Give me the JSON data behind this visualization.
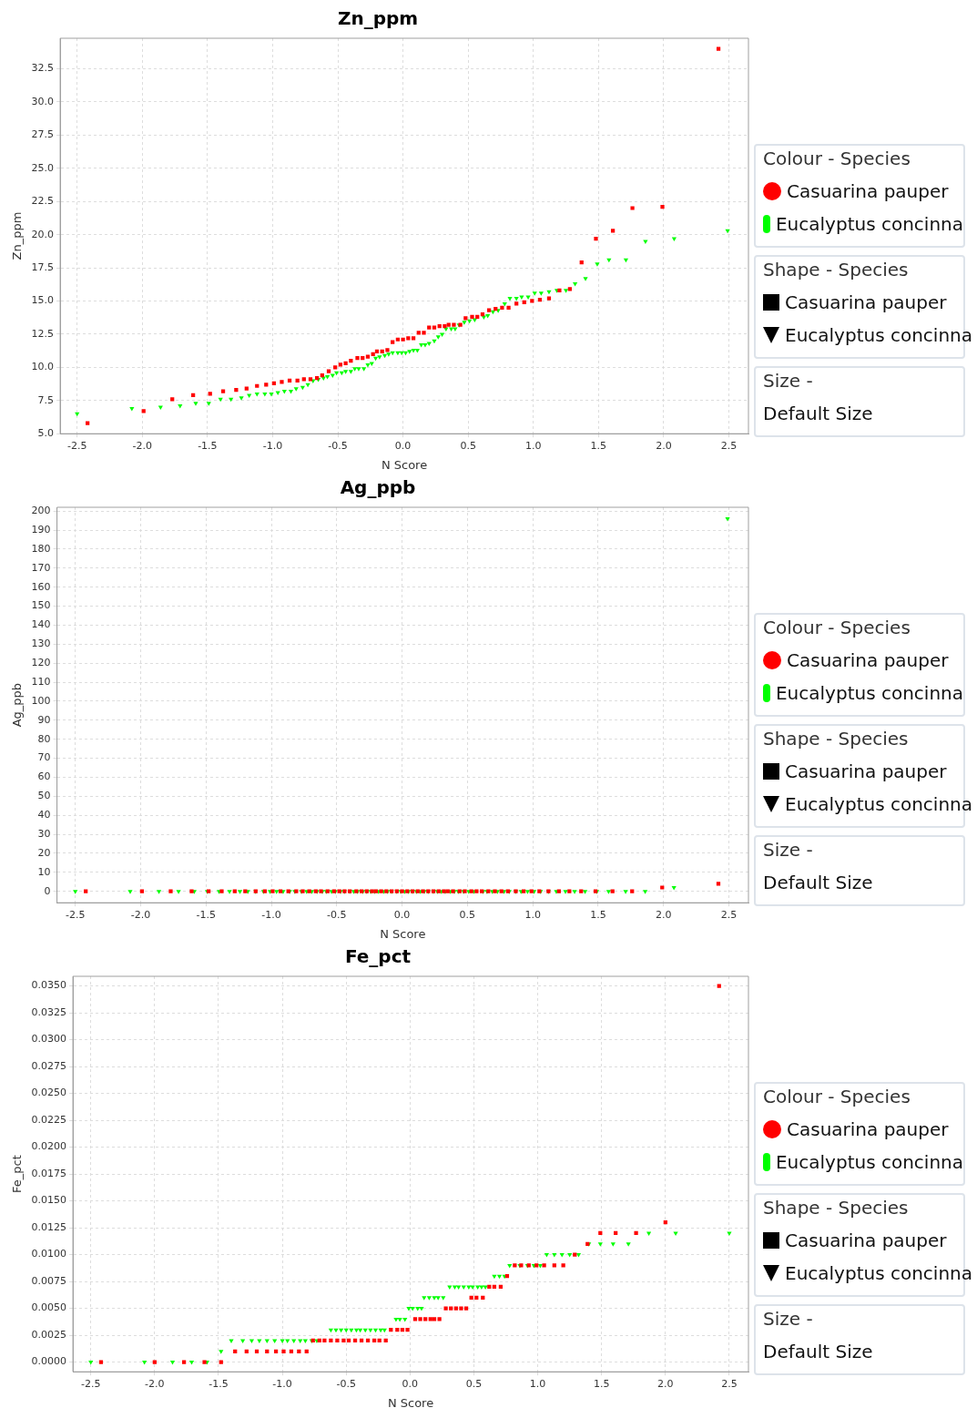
{
  "chart_data": [
    {
      "type": "scatter",
      "title": "Zn_ppm",
      "xlabel": "N Score",
      "ylabel": "Zn_ppm",
      "legend_title": "Colour - Species",
      "annotations": [
        "Shape - Species",
        "Size -",
        "Default Size"
      ],
      "legend": "right",
      "grid": true,
      "xlim": [
        -2.63,
        2.65
      ],
      "xticks": [
        {
          "value": -2.5,
          "label": "-2.5"
        },
        {
          "value": -2,
          "label": "-2.0"
        },
        {
          "value": -1.5,
          "label": "-1.5"
        },
        {
          "value": -1,
          "label": "-1.0"
        },
        {
          "value": -0.5,
          "label": "-0.5"
        },
        {
          "value": 0,
          "label": "0.0"
        },
        {
          "value": 0.5,
          "label": "0.5"
        },
        {
          "value": 1,
          "label": "1.0"
        },
        {
          "value": 1.5,
          "label": "1.5"
        },
        {
          "value": 2,
          "label": "2.0"
        },
        {
          "value": 2.5,
          "label": "2.5"
        }
      ],
      "ylim": [
        5,
        34.8
      ],
      "yticks": [
        {
          "value": 5,
          "label": "5.0"
        },
        {
          "value": 7.5,
          "label": "7.5"
        },
        {
          "value": 10,
          "label": "10.0"
        },
        {
          "value": 12.5,
          "label": "12.5"
        },
        {
          "value": 15,
          "label": "15.0"
        },
        {
          "value": 17.5,
          "label": "17.5"
        },
        {
          "value": 20,
          "label": "20.0"
        },
        {
          "value": 22.5,
          "label": "22.5"
        },
        {
          "value": 25,
          "label": "25.0"
        },
        {
          "value": 27.5,
          "label": "27.5"
        },
        {
          "value": 30,
          "label": "30.0"
        },
        {
          "value": 32.5,
          "label": "32.5"
        }
      ],
      "series": [
        {
          "name": "Casuarina pauper",
          "color": "#ff0000",
          "marker": "square",
          "x": [
            -2.42,
            -1.99,
            -1.77,
            -1.61,
            -1.48,
            -1.38,
            -1.28,
            -1.2,
            -1.12,
            -1.05,
            -0.99,
            -0.93,
            -0.87,
            -0.81,
            -0.76,
            -0.71,
            -0.66,
            -0.62,
            -0.57,
            -0.52,
            -0.48,
            -0.44,
            -0.4,
            -0.35,
            -0.31,
            -0.27,
            -0.23,
            -0.2,
            -0.16,
            -0.12,
            -0.08,
            -0.04,
            0,
            0.04,
            0.08,
            0.12,
            0.16,
            0.2,
            0.24,
            0.28,
            0.32,
            0.35,
            0.39,
            0.44,
            0.48,
            0.53,
            0.57,
            0.61,
            0.66,
            0.71,
            0.76,
            0.81,
            0.87,
            0.93,
            0.99,
            1.05,
            1.12,
            1.2,
            1.28,
            1.37,
            1.48,
            1.61,
            1.76,
            1.99,
            2.42
          ],
          "values": [
            5.8,
            6.7,
            7.6,
            7.9,
            8.0,
            8.2,
            8.3,
            8.4,
            8.6,
            8.7,
            8.8,
            8.9,
            9.0,
            9.0,
            9.1,
            9.1,
            9.2,
            9.4,
            9.7,
            10.0,
            10.2,
            10.3,
            10.5,
            10.7,
            10.7,
            10.8,
            11.0,
            11.2,
            11.2,
            11.3,
            11.9,
            12.1,
            12.1,
            12.2,
            12.2,
            12.6,
            12.6,
            13.0,
            13.0,
            13.1,
            13.1,
            13.2,
            13.2,
            13.2,
            13.7,
            13.8,
            13.8,
            14.0,
            14.3,
            14.4,
            14.5,
            14.5,
            14.8,
            14.9,
            15.0,
            15.1,
            15.2,
            15.8,
            15.9,
            17.9,
            19.7,
            20.3,
            22.0,
            22.1,
            34.0
          ]
        },
        {
          "name": "Eucalyptus concinna",
          "color": "#00ff00",
          "marker": "triangle",
          "x": [
            -2.5,
            -2.08,
            -1.86,
            -1.71,
            -1.59,
            -1.49,
            -1.4,
            -1.32,
            -1.24,
            -1.18,
            -1.12,
            -1.06,
            -1.01,
            -0.96,
            -0.91,
            -0.86,
            -0.82,
            -0.77,
            -0.73,
            -0.69,
            -0.65,
            -0.61,
            -0.58,
            -0.54,
            -0.51,
            -0.47,
            -0.44,
            -0.4,
            -0.37,
            -0.34,
            -0.3,
            -0.27,
            -0.24,
            -0.21,
            -0.18,
            -0.14,
            -0.11,
            -0.08,
            -0.04,
            -0.01,
            0.02,
            0.05,
            0.08,
            0.11,
            0.14,
            0.17,
            0.2,
            0.24,
            0.27,
            0.3,
            0.33,
            0.37,
            0.4,
            0.43,
            0.47,
            0.51,
            0.55,
            0.62,
            0.65,
            0.69,
            0.73,
            0.78,
            0.82,
            0.87,
            0.91,
            0.96,
            1.01,
            1.06,
            1.12,
            1.18,
            1.25,
            1.32,
            1.4,
            1.49,
            1.58,
            1.71,
            1.86,
            2.08,
            2.49
          ],
          "values": [
            6.5,
            6.9,
            7.0,
            7.1,
            7.3,
            7.3,
            7.6,
            7.6,
            7.7,
            7.9,
            8.0,
            8.0,
            8.0,
            8.1,
            8.2,
            8.2,
            8.4,
            8.5,
            8.7,
            9.0,
            9.1,
            9.2,
            9.3,
            9.4,
            9.6,
            9.6,
            9.7,
            9.7,
            9.9,
            9.9,
            9.9,
            10.2,
            10.3,
            10.7,
            10.8,
            10.9,
            11.0,
            11.1,
            11.1,
            11.1,
            11.1,
            11.2,
            11.3,
            11.3,
            11.7,
            11.7,
            11.8,
            12.0,
            12.3,
            12.5,
            12.9,
            12.9,
            12.9,
            13.2,
            13.4,
            13.5,
            13.6,
            13.8,
            13.9,
            14.2,
            14.3,
            14.8,
            15.2,
            15.2,
            15.3,
            15.3,
            15.6,
            15.6,
            15.7,
            15.8,
            15.8,
            16.3,
            16.7,
            17.8,
            18.1,
            18.1,
            19.5,
            19.7,
            20.3
          ]
        }
      ]
    },
    {
      "type": "scatter",
      "title": "Ag_ppb",
      "xlabel": "N Score",
      "ylabel": "Ag_ppb",
      "legend_title": "Colour - Species",
      "annotations": [
        "Shape - Species",
        "Size -",
        "Default Size"
      ],
      "legend": "right",
      "grid": true,
      "xlim": [
        -2.64,
        2.65
      ],
      "xticks": [
        {
          "value": -2.5,
          "label": "-2.5"
        },
        {
          "value": -2,
          "label": "-2.0"
        },
        {
          "value": -1.5,
          "label": "-1.5"
        },
        {
          "value": -1,
          "label": "-1.0"
        },
        {
          "value": -0.5,
          "label": "-0.5"
        },
        {
          "value": 0,
          "label": "0.0"
        },
        {
          "value": 0.5,
          "label": "0.5"
        },
        {
          "value": 1,
          "label": "1.0"
        },
        {
          "value": 1.5,
          "label": "1.5"
        },
        {
          "value": 2,
          "label": "2.0"
        },
        {
          "value": 2.5,
          "label": "2.5"
        }
      ],
      "ylim": [
        -6,
        202
      ],
      "yticks": [
        0,
        10,
        20,
        30,
        40,
        50,
        60,
        70,
        80,
        90,
        100,
        110,
        120,
        130,
        140,
        150,
        160,
        170,
        180,
        190,
        200
      ],
      "series": [
        {
          "name": "Casuarina pauper",
          "color": "#ff0000",
          "marker": "square",
          "x": [
            -2.42,
            -1.99,
            -1.77,
            -1.61,
            -1.48,
            -1.38,
            -1.28,
            -1.2,
            -1.12,
            -1.05,
            -0.99,
            -0.93,
            -0.87,
            -0.81,
            -0.76,
            -0.71,
            -0.66,
            -0.62,
            -0.57,
            -0.52,
            -0.48,
            -0.44,
            -0.4,
            -0.35,
            -0.31,
            -0.27,
            -0.23,
            -0.2,
            -0.16,
            -0.12,
            -0.08,
            -0.04,
            0,
            0.04,
            0.08,
            0.12,
            0.16,
            0.2,
            0.24,
            0.28,
            0.32,
            0.35,
            0.39,
            0.44,
            0.48,
            0.53,
            0.57,
            0.61,
            0.66,
            0.71,
            0.76,
            0.81,
            0.87,
            0.93,
            0.99,
            1.05,
            1.12,
            1.2,
            1.28,
            1.37,
            1.48,
            1.61,
            1.76,
            1.99,
            2.42
          ],
          "values": [
            0,
            0,
            0,
            0,
            0,
            0,
            0,
            0,
            0,
            0,
            0,
            0,
            0,
            0,
            0,
            0,
            0,
            0,
            0,
            0,
            0,
            0,
            0,
            0,
            0,
            0,
            0,
            0,
            0,
            0,
            0,
            0,
            0,
            0,
            0,
            0,
            0,
            0,
            0,
            0,
            0,
            0,
            0,
            0,
            0,
            0,
            0,
            0,
            0,
            0,
            0,
            0,
            0,
            0,
            0,
            0,
            0,
            0,
            0,
            0,
            0,
            0,
            0,
            2,
            4
          ]
        },
        {
          "name": "Eucalyptus concinna",
          "color": "#00ff00",
          "marker": "triangle",
          "x": [
            -2.5,
            -2.08,
            -1.86,
            -1.71,
            -1.59,
            -1.49,
            -1.4,
            -1.32,
            -1.24,
            -1.18,
            -1.12,
            -1.06,
            -1.01,
            -0.96,
            -0.91,
            -0.86,
            -0.82,
            -0.77,
            -0.73,
            -0.69,
            -0.65,
            -0.61,
            -0.58,
            -0.54,
            -0.51,
            -0.47,
            -0.44,
            -0.4,
            -0.37,
            -0.34,
            -0.3,
            -0.27,
            -0.24,
            -0.21,
            -0.18,
            -0.14,
            -0.11,
            -0.08,
            -0.04,
            -0.01,
            0.02,
            0.05,
            0.08,
            0.11,
            0.14,
            0.17,
            0.2,
            0.24,
            0.27,
            0.3,
            0.33,
            0.37,
            0.4,
            0.43,
            0.47,
            0.51,
            0.55,
            0.62,
            0.65,
            0.69,
            0.73,
            0.78,
            0.82,
            0.87,
            0.91,
            0.96,
            1.01,
            1.06,
            1.12,
            1.18,
            1.25,
            1.32,
            1.4,
            1.49,
            1.58,
            1.71,
            1.86,
            2.08,
            2.49
          ],
          "values": [
            0,
            0,
            0,
            0,
            0,
            0,
            0,
            0,
            0,
            0,
            0,
            0,
            0,
            0,
            0,
            0,
            0,
            0,
            0,
            0,
            0,
            0,
            0,
            0,
            0,
            0,
            0,
            0,
            0,
            0,
            0,
            0,
            0,
            0,
            0,
            0,
            0,
            0,
            0,
            0,
            0,
            0,
            0,
            0,
            0,
            0,
            0,
            0,
            0,
            0,
            0,
            0,
            0,
            0,
            0,
            0,
            0,
            0,
            0,
            0,
            0,
            0,
            0,
            0,
            0,
            0,
            0,
            0,
            0,
            0,
            0,
            0,
            0,
            0,
            0,
            0,
            0,
            2,
            196
          ]
        }
      ]
    },
    {
      "type": "scatter",
      "title": "Fe_pct",
      "xlabel": "N Score",
      "ylabel": "Fe_pct",
      "legend_title": "Colour - Species",
      "annotations": [
        "Shape - Species",
        "Size -",
        "Default Size"
      ],
      "legend": "right",
      "grid": true,
      "xlim": [
        -2.64,
        2.65
      ],
      "xticks": [
        {
          "value": -2.5,
          "label": "-2.5"
        },
        {
          "value": -2,
          "label": "-2.0"
        },
        {
          "value": -1.5,
          "label": "-1.5"
        },
        {
          "value": -1,
          "label": "-1.0"
        },
        {
          "value": -0.5,
          "label": "-0.5"
        },
        {
          "value": 0,
          "label": "0.0"
        },
        {
          "value": 0.5,
          "label": "0.5"
        },
        {
          "value": 1,
          "label": "1.0"
        },
        {
          "value": 1.5,
          "label": "1.5"
        },
        {
          "value": 2,
          "label": "2.0"
        },
        {
          "value": 2.5,
          "label": "2.5"
        }
      ],
      "ylim": [
        -0.0009,
        0.0359
      ],
      "yticks": [
        {
          "value": 0,
          "label": "0.0000"
        },
        {
          "value": 0.0025,
          "label": "0.0025"
        },
        {
          "value": 0.005,
          "label": "0.0050"
        },
        {
          "value": 0.0075,
          "label": "0.0075"
        },
        {
          "value": 0.01,
          "label": "0.0100"
        },
        {
          "value": 0.0125,
          "label": "0.0125"
        },
        {
          "value": 0.015,
          "label": "0.0150"
        },
        {
          "value": 0.0175,
          "label": "0.0175"
        },
        {
          "value": 0.02,
          "label": "0.0200"
        },
        {
          "value": 0.0225,
          "label": "0.0225"
        },
        {
          "value": 0.025,
          "label": "0.0250"
        },
        {
          "value": 0.0275,
          "label": "0.0275"
        },
        {
          "value": 0.03,
          "label": "0.0300"
        },
        {
          "value": 0.0325,
          "label": "0.0325"
        },
        {
          "value": 0.035,
          "label": "0.0350"
        }
      ],
      "series": [
        {
          "name": "Casuarina pauper",
          "color": "#ff0000",
          "marker": "square",
          "x": [
            -2.42,
            -2.0,
            -1.77,
            -1.61,
            -1.48,
            -1.37,
            -1.28,
            -1.2,
            -1.12,
            -1.05,
            -0.99,
            -0.93,
            -0.87,
            -0.81,
            -0.76,
            -0.71,
            -0.67,
            -0.62,
            -0.57,
            -0.52,
            -0.48,
            -0.43,
            -0.38,
            -0.33,
            -0.28,
            -0.24,
            -0.19,
            -0.15,
            -0.1,
            -0.06,
            -0.02,
            0.04,
            0.08,
            0.12,
            0.16,
            0.19,
            0.23,
            0.28,
            0.32,
            0.36,
            0.4,
            0.44,
            0.48,
            0.52,
            0.57,
            0.62,
            0.66,
            0.71,
            0.76,
            0.82,
            0.87,
            0.93,
            0.99,
            1.05,
            1.13,
            1.2,
            1.29,
            1.39,
            1.49,
            1.61,
            1.77,
            2.0,
            2.42
          ],
          "values": [
            0,
            0,
            0,
            0,
            0,
            0.001,
            0.001,
            0.001,
            0.001,
            0.001,
            0.001,
            0.001,
            0.001,
            0.001,
            0.002,
            0.002,
            0.002,
            0.002,
            0.002,
            0.002,
            0.002,
            0.002,
            0.002,
            0.002,
            0.002,
            0.002,
            0.002,
            0.003,
            0.003,
            0.003,
            0.003,
            0.004,
            0.004,
            0.004,
            0.004,
            0.004,
            0.004,
            0.005,
            0.005,
            0.005,
            0.005,
            0.005,
            0.006,
            0.006,
            0.006,
            0.007,
            0.007,
            0.007,
            0.008,
            0.009,
            0.009,
            0.009,
            0.009,
            0.009,
            0.009,
            0.009,
            0.01,
            0.011,
            0.012,
            0.012,
            0.012,
            0.013,
            0.035
          ]
        },
        {
          "name": "Eucalyptus concinna",
          "color": "#00ff00",
          "marker": "triangle",
          "x": [
            -2.5,
            -2.08,
            -1.86,
            -1.71,
            -1.59,
            -1.48,
            -1.4,
            -1.31,
            -1.24,
            -1.18,
            -1.12,
            -1.06,
            -1,
            -0.96,
            -0.91,
            -0.86,
            -0.82,
            -0.77,
            -0.73,
            -0.62,
            -0.58,
            -0.54,
            -0.5,
            -0.46,
            -0.42,
            -0.39,
            -0.35,
            -0.31,
            -0.27,
            -0.23,
            -0.2,
            -0.11,
            -0.08,
            -0.04,
            -0.01,
            0.02,
            0.06,
            0.09,
            0.11,
            0.15,
            0.19,
            0.22,
            0.26,
            0.31,
            0.35,
            0.38,
            0.42,
            0.46,
            0.49,
            0.53,
            0.56,
            0.59,
            0.66,
            0.7,
            0.74,
            0.78,
            0.86,
            0.92,
            0.97,
            1.02,
            1.07,
            1.13,
            1.19,
            1.25,
            1.32,
            1.4,
            1.49,
            1.59,
            1.71,
            1.87,
            2.08,
            2.5
          ],
          "values": [
            0,
            0,
            0,
            0,
            0,
            0.001,
            0.002,
            0.002,
            0.002,
            0.002,
            0.002,
            0.002,
            0.002,
            0.002,
            0.002,
            0.002,
            0.002,
            0.002,
            0.002,
            0.003,
            0.003,
            0.003,
            0.003,
            0.003,
            0.003,
            0.003,
            0.003,
            0.003,
            0.003,
            0.003,
            0.003,
            0.004,
            0.004,
            0.004,
            0.005,
            0.005,
            0.005,
            0.005,
            0.006,
            0.006,
            0.006,
            0.006,
            0.006,
            0.007,
            0.007,
            0.007,
            0.007,
            0.007,
            0.007,
            0.007,
            0.007,
            0.007,
            0.008,
            0.008,
            0.008,
            0.009,
            0.009,
            0.009,
            0.009,
            0.009,
            0.01,
            0.01,
            0.01,
            0.01,
            0.01,
            0.011,
            0.011,
            0.011,
            0.011,
            0.012,
            0.012,
            0.012
          ]
        }
      ]
    }
  ]
}
